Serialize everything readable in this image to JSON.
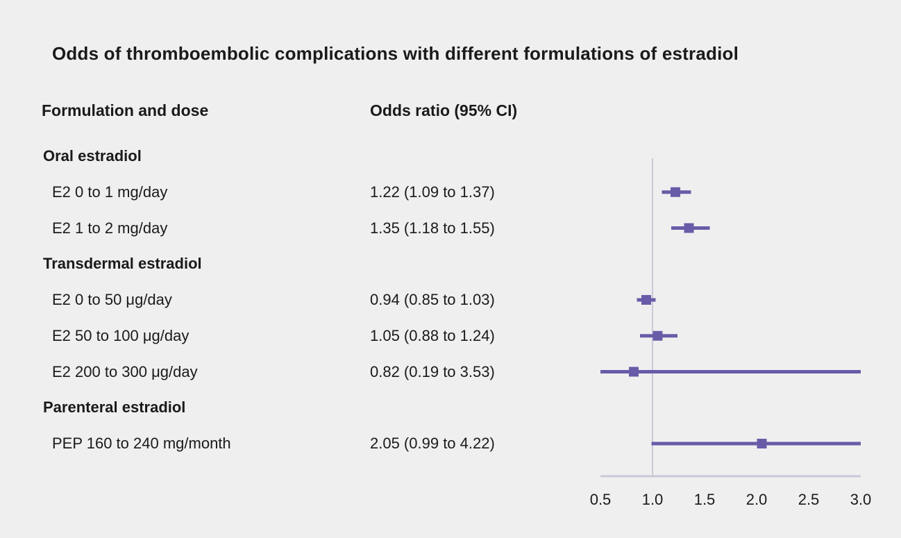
{
  "title": "Odds of thromboembolic complications with different formulations of estradiol",
  "columns": {
    "formulation": "Formulation and dose",
    "odds": "Odds ratio (95% CI)"
  },
  "colors": {
    "background": "#efeff0",
    "marker": "#685ca8",
    "axis": "#c8c8d8",
    "text": "#1a1a1a"
  },
  "chart_data": {
    "type": "scatter",
    "subtype": "forest-plot",
    "title": "Odds of thromboembolic complications with different formulations of estradiol",
    "xlabel": "Odds ratio (95% CI)",
    "xlim": [
      0.5,
      3.0
    ],
    "x_tick_labels": [
      "0.5",
      "1.0",
      "1.5",
      "2.0",
      "2.5",
      "3.0"
    ],
    "reference_line": 1.0,
    "grid": false,
    "legend": "none",
    "rows": [
      {
        "type": "group",
        "label": "Oral estradiol"
      },
      {
        "type": "item",
        "label": "E2 0 to 1 mg/day",
        "or_text": "1.22 (1.09 to 1.37)",
        "or": 1.22,
        "ci_low": 1.09,
        "ci_high": 1.37
      },
      {
        "type": "item",
        "label": "E2 1 to 2 mg/day",
        "or_text": "1.35 (1.18 to 1.55)",
        "or": 1.35,
        "ci_low": 1.18,
        "ci_high": 1.55
      },
      {
        "type": "group",
        "label": "Transdermal estradiol"
      },
      {
        "type": "item",
        "label": "E2 0 to 50 μg/day",
        "or_text": "0.94 (0.85 to 1.03)",
        "or": 0.94,
        "ci_low": 0.85,
        "ci_high": 1.03
      },
      {
        "type": "item",
        "label": "E2 50 to 100 μg/day",
        "or_text": "1.05 (0.88 to 1.24)",
        "or": 1.05,
        "ci_low": 0.88,
        "ci_high": 1.24
      },
      {
        "type": "item",
        "label": "E2 200 to 300 μg/day",
        "or_text": "0.82 (0.19 to 3.53)",
        "or": 0.82,
        "ci_low": 0.19,
        "ci_high": 3.53
      },
      {
        "type": "group",
        "label": "Parenteral estradiol"
      },
      {
        "type": "item",
        "label": "PEP 160 to 240 mg/month",
        "or_text": "2.05 (0.99 to 4.22)",
        "or": 2.05,
        "ci_low": 0.99,
        "ci_high": 4.22
      }
    ]
  }
}
